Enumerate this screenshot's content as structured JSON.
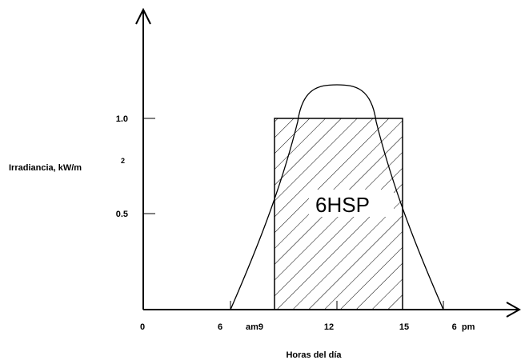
{
  "y_axis": {
    "label": "Irradiancia, kW/m",
    "label_superscript": "2",
    "ticks": [
      "1.0",
      "0.5"
    ]
  },
  "x_axis": {
    "label": "Horas del día",
    "ticks": [
      "0",
      "6",
      "am9",
      "12",
      "15",
      "6  pm"
    ]
  },
  "area_label": "6HSP",
  "colors": {
    "stroke": "#000000",
    "background": "#ffffff"
  }
}
